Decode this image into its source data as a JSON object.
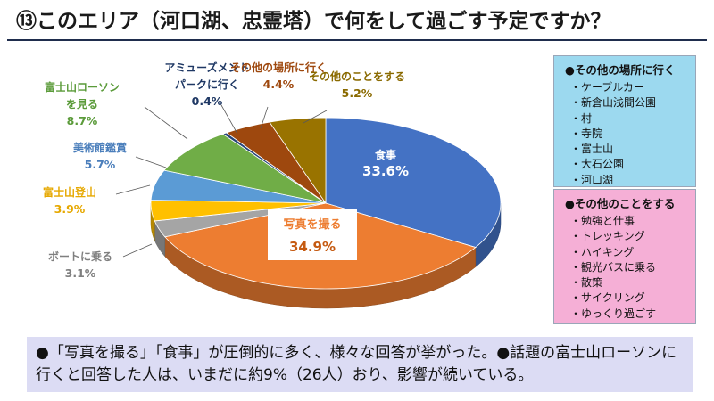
{
  "title": "⑬このエリア（河口湖、忠霊塔）で何をして過ごす予定ですか？",
  "chart_data": {
    "type": "pie",
    "slices": [
      {
        "label": "食事",
        "value": 33.6,
        "value_text": "33.6%",
        "color": "#4472c4"
      },
      {
        "label": "写真を撮る",
        "value": 34.9,
        "value_text": "34.9%",
        "color": "#ed7d31"
      },
      {
        "label": "ボートに乗る",
        "value": 3.1,
        "value_text": "3.1%",
        "color": "#a5a5a5"
      },
      {
        "label": "富士山登山",
        "value": 3.9,
        "value_text": "3.9%",
        "color": "#ffc000"
      },
      {
        "label": "美術館鑑賞",
        "value": 5.7,
        "value_text": "5.7%",
        "color": "#5b9bd5"
      },
      {
        "label": [
          "富士山ローソン",
          "を見る"
        ],
        "value": 8.7,
        "value_text": "8.7%",
        "color": "#70ad47"
      },
      {
        "label": [
          "アミューズメント",
          "パークに行く"
        ],
        "value": 0.4,
        "value_text": "0.4%",
        "color": "#264478"
      },
      {
        "label": "その他の場所に行く",
        "value": 4.4,
        "value_text": "4.4%",
        "color": "#9e480e"
      },
      {
        "label": "その他のことをする",
        "value": 5.2,
        "value_text": "5.2%",
        "color": "#997300"
      }
    ]
  },
  "other_places": {
    "heading": "●その他の場所に行く",
    "items": [
      "・ケーブルカー",
      "・新倉山浅間公園",
      "・村",
      "・寺院",
      "・富士山",
      "・大石公園",
      "・河口湖"
    ]
  },
  "other_things": {
    "heading": "●その他のことをする",
    "items": [
      "・勉強と仕事",
      "・トレッキング",
      "・ハイキング",
      "・観光バスに乗る",
      "・散策",
      "・サイクリング",
      "・ゆっくり過ごす"
    ]
  },
  "summary": "●「写真を撮る」「食事」が圧倒的に多く、様々な回答が挙がった。●話題の富士山ローソンに行くと回答した人は、いまだに約9%（26人）おり、影響が続いている。"
}
